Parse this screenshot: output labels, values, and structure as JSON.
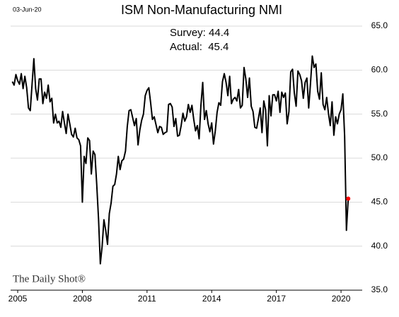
{
  "chart_data": {
    "type": "line",
    "title": "ISM Non-Manufacturing NMI",
    "date": "03-Jun-20",
    "annotations": [
      "Survey: 44.4",
      "Actual:  45.4"
    ],
    "source": "The Daily Shot®",
    "categories": [
      null,
      null,
      null,
      "2005",
      null,
      null,
      null,
      null,
      null,
      null,
      null,
      null,
      null,
      null,
      null,
      null,
      null,
      null,
      null,
      null,
      null,
      null,
      null,
      null,
      null,
      null,
      null,
      null,
      null,
      null,
      null,
      null,
      null,
      null,
      null,
      null,
      null,
      null,
      null,
      "2008",
      null,
      null,
      null,
      null,
      null,
      null,
      null,
      null,
      null,
      null,
      null,
      null,
      null,
      null,
      null,
      null,
      null,
      null,
      null,
      null,
      null,
      null,
      null,
      null,
      null,
      null,
      null,
      null,
      null,
      null,
      null,
      null,
      null,
      null,
      null,
      "2011",
      null,
      null,
      null,
      null,
      null,
      null,
      null,
      null,
      null,
      null,
      null,
      null,
      null,
      null,
      null,
      null,
      null,
      null,
      null,
      null,
      null,
      null,
      null,
      null,
      null,
      null,
      null,
      null,
      null,
      null,
      null,
      null,
      null,
      null,
      null,
      "2014",
      null,
      null,
      null,
      null,
      null,
      null,
      null,
      null,
      null,
      null,
      null,
      null,
      null,
      null,
      null,
      null,
      null,
      null,
      null,
      null,
      null,
      null,
      null,
      null,
      null,
      null,
      null,
      null,
      null,
      null,
      null,
      null,
      null,
      null,
      null,
      "2017",
      null,
      null,
      null,
      null,
      null,
      null,
      null,
      null,
      null,
      null,
      null,
      null,
      null,
      null,
      null,
      null,
      null,
      null,
      null,
      null,
      null,
      null,
      null,
      null,
      null,
      null,
      null,
      null,
      null,
      null,
      null,
      null,
      null,
      null,
      null,
      "2020",
      null,
      null,
      null,
      null
    ],
    "series": [
      {
        "name": "ISM Non-Manufacturing NMI",
        "color": "#000000",
        "values": [
          58.7,
          58.3,
          59.5,
          58.8,
          58.4,
          59.6,
          57.9,
          59.3,
          58.0,
          55.7,
          55.4,
          58.4,
          61.3,
          57.9,
          56.6,
          59.0,
          59.0,
          56.2,
          57.5,
          56.8,
          58.3,
          56.4,
          56.8,
          54.0,
          55.0,
          54.0,
          54.2,
          53.5,
          55.3,
          54.0,
          52.8,
          55.0,
          53.9,
          52.7,
          52.4,
          53.4,
          52.3,
          52.1,
          51.4,
          45.0,
          50.2,
          49.4,
          52.3,
          52.0,
          48.2,
          50.8,
          50.4,
          47.0,
          43.1,
          38.0,
          40.0,
          43.0,
          41.8,
          40.2,
          43.7,
          44.9,
          46.8,
          47.0,
          48.2,
          50.2,
          48.7,
          49.7,
          49.9,
          50.8,
          53.6,
          55.4,
          55.5,
          54.6,
          53.7,
          54.5,
          51.5,
          53.2,
          54.3,
          55.0,
          57.1,
          57.7,
          58.0,
          56.3,
          54.4,
          54.7,
          53.8,
          52.9,
          53.6,
          53.5,
          52.7,
          52.9,
          53.0,
          56.1,
          56.2,
          55.8,
          53.6,
          54.5,
          52.5,
          52.6,
          53.7,
          55.1,
          54.2,
          54.7,
          56.1,
          55.2,
          56.0,
          54.4,
          53.1,
          53.7,
          52.2,
          56.0,
          58.6,
          54.4,
          55.4,
          53.9,
          53.0,
          54.0,
          51.6,
          53.1,
          55.2,
          56.3,
          56.0,
          58.7,
          59.6,
          58.6,
          57.1,
          59.3,
          56.2,
          56.7,
          56.9,
          56.5,
          57.8,
          55.7,
          56.0,
          60.3,
          59.0,
          56.9,
          59.1,
          55.9,
          55.3,
          53.5,
          53.4,
          54.5,
          55.7,
          52.9,
          56.5,
          55.5,
          51.4,
          57.1,
          54.8,
          57.2,
          57.2,
          56.5,
          57.6,
          55.2,
          57.5,
          56.9,
          57.4,
          53.9,
          55.3,
          59.8,
          60.1,
          57.4,
          55.9,
          59.9,
          59.5,
          58.8,
          56.8,
          58.6,
          59.1,
          55.7,
          58.5,
          61.6,
          60.3,
          60.7,
          57.6,
          56.7,
          59.7,
          56.1,
          55.5,
          56.9,
          55.1,
          53.7,
          56.4,
          52.6,
          54.7,
          53.9,
          55.0,
          55.5,
          57.3,
          52.5,
          41.8,
          45.4
        ]
      }
    ],
    "last_point_color": "#ff0000",
    "ylim": [
      35,
      65
    ],
    "yticks": [
      {
        "value": 35,
        "label": "35.0"
      },
      {
        "value": 40,
        "label": "40.0"
      },
      {
        "value": 45,
        "label": "45.0"
      },
      {
        "value": 50,
        "label": "50.0"
      },
      {
        "value": 55,
        "label": "55.0"
      },
      {
        "value": 60,
        "label": "60.0"
      },
      {
        "value": 65,
        "label": "65.0"
      }
    ],
    "grid": true
  }
}
